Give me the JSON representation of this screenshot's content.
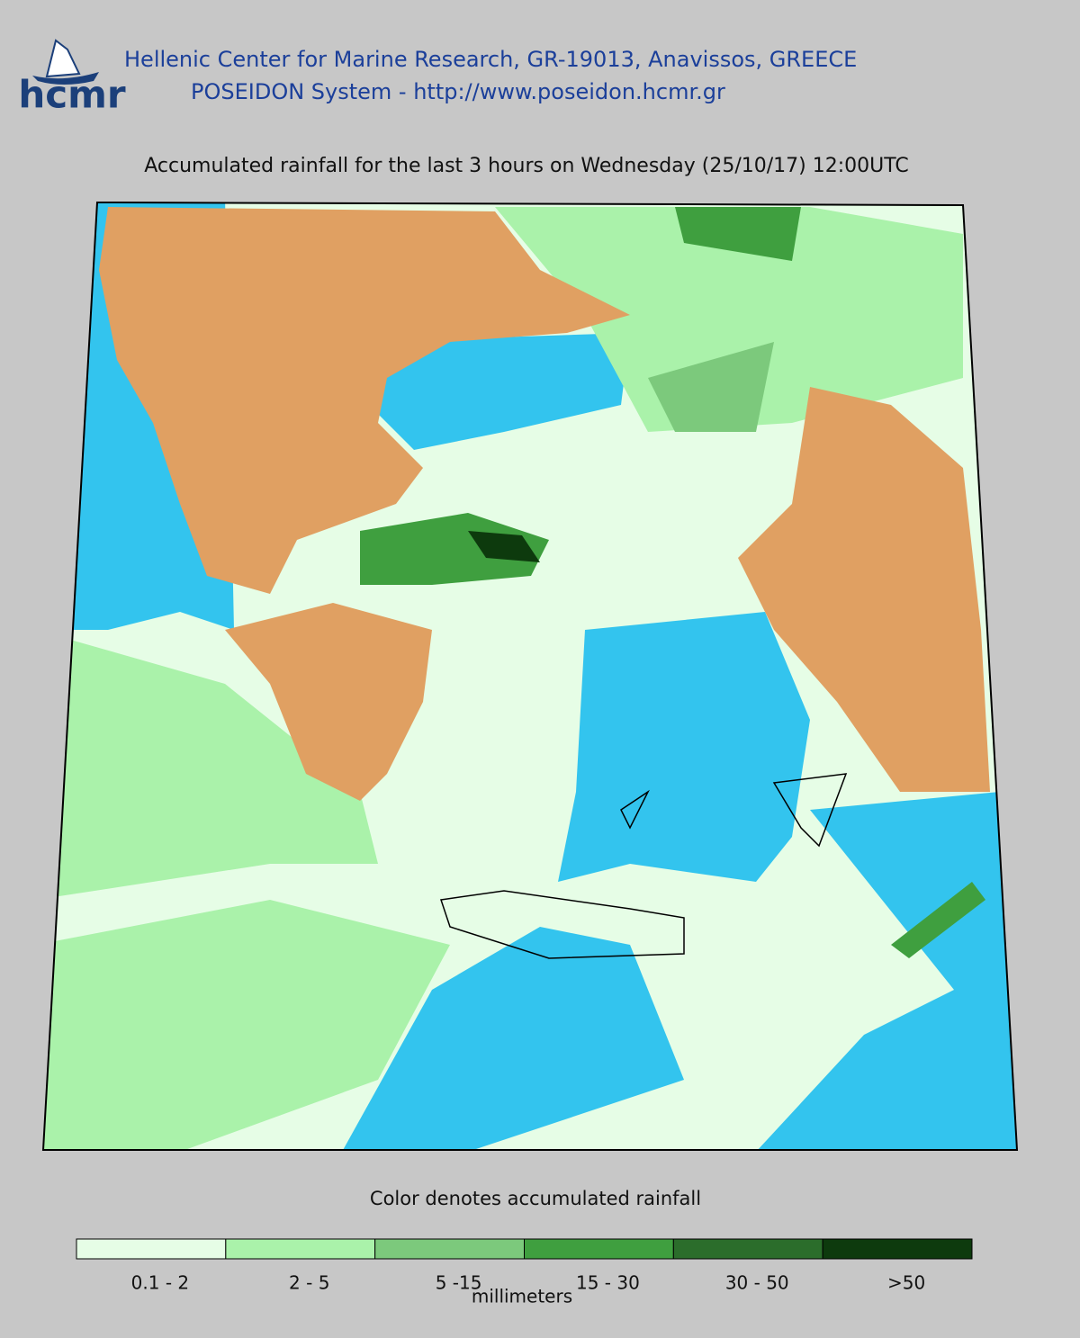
{
  "header": {
    "logo": "hcmr",
    "line1": "Hellenic Center for Marine Research, GR-19013, Anavissos, GREECE",
    "line2": "POSEIDON System - http://www.poseidon.hcmr.gr"
  },
  "map": {
    "title": "Accumulated rainfall for the last 3 hours on Wednesday (25/10/17) 12:00UTC"
  },
  "legend": {
    "caption": "Color denotes accumulated rainfall",
    "units": "millimeters",
    "bins": [
      {
        "label": "0.1 - 2",
        "color": "#e6fde6"
      },
      {
        "label": "2 - 5",
        "color": "#aaf2aa"
      },
      {
        "label": "5 -15",
        "color": "#7cc97c"
      },
      {
        "label": "15 - 30",
        "color": "#3f9f3f"
      },
      {
        "label": "30 - 50",
        "color": "#2b6d2b"
      },
      {
        "label": ">50",
        "color": "#0d3a0d"
      }
    ]
  }
}
